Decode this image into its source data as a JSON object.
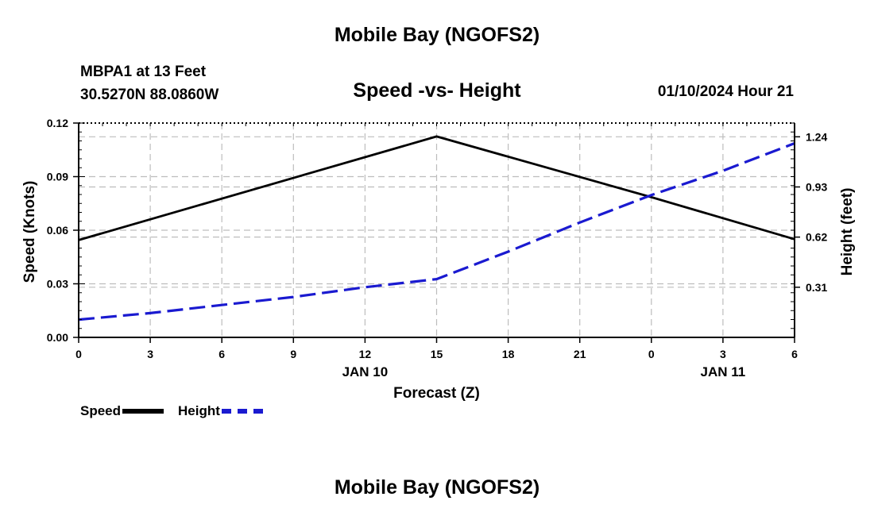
{
  "page_title": "Mobile Bay (NGOFS2)",
  "footer_title": "Mobile Bay (NGOFS2)",
  "station": {
    "line1": "MBPA1 at 13 Feet",
    "line2": "30.5270N  88.0860W"
  },
  "datetime": "01/10/2024 Hour 21",
  "chart_data": {
    "type": "line",
    "title": "Speed -vs- Height",
    "xlabel": "Forecast (Z)",
    "ylabel": "Speed (Knots)",
    "y2label": "Height (feet)",
    "x": [
      0,
      3,
      6,
      9,
      12,
      15,
      18,
      21,
      24,
      27,
      30
    ],
    "x_tick_labels": [
      "0",
      "3",
      "6",
      "9",
      "12",
      "15",
      "18",
      "21",
      "0",
      "3",
      "6"
    ],
    "date_labels": [
      {
        "x": 12,
        "label": "JAN 10"
      },
      {
        "x": 27,
        "label": "JAN 11"
      }
    ],
    "xlim": [
      0,
      30
    ],
    "ylim": [
      0,
      0.12
    ],
    "y_ticks": [
      "0.00",
      "0.03",
      "0.06",
      "0.09",
      "0.12"
    ],
    "y2lim": [
      0,
      1.325
    ],
    "y2_ticks": [
      "0.31",
      "0.62",
      "0.93",
      "1.24"
    ],
    "grid": true,
    "legend_position": "bottom-left",
    "series": [
      {
        "name": "Speed",
        "axis": "left",
        "color": "#000000",
        "style": "solid",
        "points": [
          [
            0,
            0.0545
          ],
          [
            15,
            0.1125
          ],
          [
            24,
            0.0785
          ],
          [
            30,
            0.055
          ]
        ]
      },
      {
        "name": "Height",
        "axis": "right",
        "color": "#1a1ad0",
        "style": "dashed",
        "points": [
          [
            0,
            0.11
          ],
          [
            3,
            0.15
          ],
          [
            6,
            0.2
          ],
          [
            9,
            0.25
          ],
          [
            12,
            0.31
          ],
          [
            15,
            0.36
          ],
          [
            18,
            0.53
          ],
          [
            21,
            0.71
          ],
          [
            24,
            0.88
          ],
          [
            27,
            1.03
          ],
          [
            30,
            1.2
          ]
        ]
      }
    ]
  }
}
